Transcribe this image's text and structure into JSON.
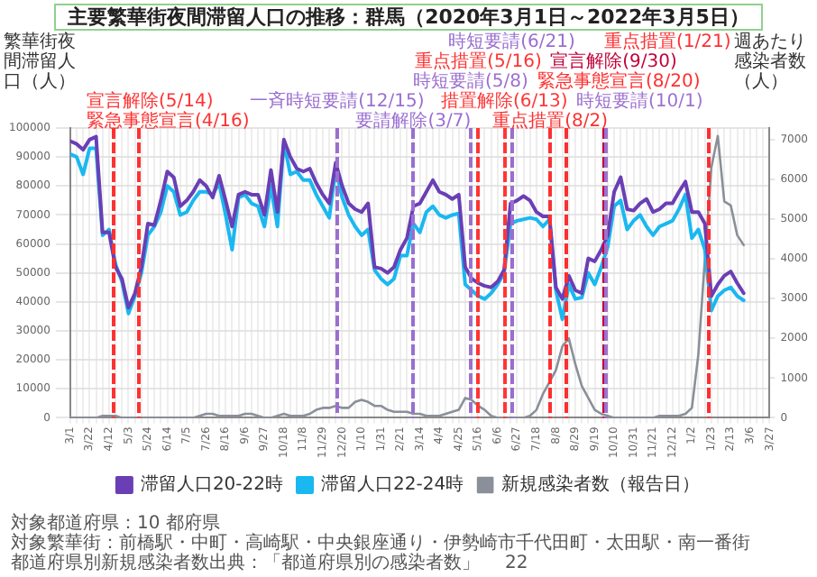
{
  "chart_data": {
    "type": "line",
    "title": "主要繁華街夜間滞留人口の推移：群馬（2020年3月1日～2022年3月5日）",
    "ylabel": "繁華街夜間滞留人口（人）",
    "y2label": "週あたり感染者数（人）",
    "x": [
      "2020-03-01",
      "2020-03-08",
      "2020-03-15",
      "2020-03-22",
      "2020-03-29",
      "2020-04-05",
      "2020-04-12",
      "2020-04-19",
      "2020-04-26",
      "2020-05-03",
      "2020-05-10",
      "2020-05-17",
      "2020-05-24",
      "2020-05-31",
      "2020-06-07",
      "2020-06-14",
      "2020-06-21",
      "2020-06-28",
      "2020-07-05",
      "2020-07-12",
      "2020-07-19",
      "2020-07-26",
      "2020-08-02",
      "2020-08-09",
      "2020-08-16",
      "2020-08-23",
      "2020-08-30",
      "2020-09-06",
      "2020-09-13",
      "2020-09-20",
      "2020-09-27",
      "2020-10-04",
      "2020-10-11",
      "2020-10-18",
      "2020-10-25",
      "2020-11-01",
      "2020-11-08",
      "2020-11-15",
      "2020-11-22",
      "2020-11-29",
      "2020-12-06",
      "2020-12-13",
      "2020-12-20",
      "2020-12-27",
      "2021-01-03",
      "2021-01-10",
      "2021-01-17",
      "2021-01-24",
      "2021-01-31",
      "2021-02-07",
      "2021-02-14",
      "2021-02-21",
      "2021-02-28",
      "2021-03-07",
      "2021-03-14",
      "2021-03-21",
      "2021-03-28",
      "2021-04-04",
      "2021-04-11",
      "2021-04-18",
      "2021-04-25",
      "2021-05-02",
      "2021-05-09",
      "2021-05-16",
      "2021-05-23",
      "2021-05-30",
      "2021-06-06",
      "2021-06-13",
      "2021-06-20",
      "2021-06-27",
      "2021-07-04",
      "2021-07-11",
      "2021-07-18",
      "2021-07-25",
      "2021-08-01",
      "2021-08-08",
      "2021-08-15",
      "2021-08-22",
      "2021-08-29",
      "2021-09-05",
      "2021-09-12",
      "2021-09-19",
      "2021-09-26",
      "2021-10-03",
      "2021-10-10",
      "2021-10-17",
      "2021-10-24",
      "2021-10-31",
      "2021-11-07",
      "2021-11-14",
      "2021-11-21",
      "2021-11-28",
      "2021-12-05",
      "2021-12-12",
      "2021-12-19",
      "2021-12-26",
      "2022-01-02",
      "2022-01-09",
      "2022-01-16",
      "2022-01-23",
      "2022-01-30",
      "2022-02-06",
      "2022-02-13",
      "2022-02-20",
      "2022-02-27"
    ],
    "series": [
      {
        "name": "滞留人口20-22時",
        "color": "#6a3fb5",
        "values": [
          95500,
          94500,
          92500,
          96000,
          97000,
          64000,
          64000,
          52000,
          48000,
          38000,
          43000,
          52000,
          67000,
          66500,
          75000,
          85000,
          83000,
          73000,
          75000,
          78000,
          82000,
          80000,
          76000,
          83500,
          75000,
          66000,
          77000,
          78000,
          77000,
          77000,
          70000,
          85500,
          71000,
          96000,
          90000,
          86000,
          85000,
          86000,
          81000,
          77000,
          74000,
          88000,
          80000,
          74000,
          72000,
          71000,
          74000,
          52000,
          51500,
          50000,
          52000,
          58000,
          62000,
          73000,
          74000,
          78000,
          82000,
          78000,
          77000,
          75500,
          77000,
          52000,
          48000,
          46500,
          45500,
          45000,
          47000,
          51000,
          74000,
          75000,
          76500,
          75000,
          71000,
          69500,
          69500,
          45000,
          41000,
          49000,
          44000,
          43000,
          55000,
          54000,
          58000,
          63000,
          78000,
          83000,
          72000,
          71500,
          74000,
          75500,
          71000,
          72000,
          74000,
          74000,
          78000,
          81500,
          71000,
          71000,
          67000,
          42000,
          46000,
          49000,
          50500,
          46500,
          43000
        ]
      },
      {
        "name": "滞留人口22-24時",
        "color": "#1ab8f0",
        "values": [
          91000,
          90000,
          84000,
          93000,
          93000,
          63000,
          65000,
          53000,
          47000,
          36000,
          42000,
          50000,
          63000,
          66000,
          71000,
          80000,
          78000,
          70000,
          71000,
          75000,
          78000,
          78000,
          77000,
          81000,
          70000,
          58000,
          76000,
          77000,
          74000,
          73000,
          66000,
          80000,
          66000,
          95000,
          84000,
          85000,
          82000,
          82000,
          77000,
          73000,
          69000,
          86000,
          76000,
          70000,
          66000,
          63000,
          65000,
          51000,
          48000,
          46000,
          48000,
          56000,
          56000,
          67000,
          64000,
          71000,
          73000,
          70000,
          69000,
          70000,
          70500,
          46000,
          44000,
          42000,
          41000,
          43000,
          46000,
          50000,
          67000,
          68000,
          68500,
          69000,
          68500,
          66000,
          68500,
          44000,
          34000,
          46000,
          41000,
          41500,
          50000,
          46000,
          52000,
          59000,
          73000,
          75000,
          65000,
          68000,
          70000,
          66000,
          63000,
          66000,
          67000,
          68000,
          72000,
          77000,
          62000,
          65000,
          58000,
          37000,
          42000,
          44000,
          45000,
          42000,
          40500
        ]
      },
      {
        "name": "新規感染者数（報告日）",
        "color": "#8a8f99",
        "axis": "y2",
        "values": [
          0,
          0,
          0,
          0,
          0,
          50,
          50,
          50,
          0,
          0,
          0,
          0,
          0,
          0,
          0,
          0,
          0,
          0,
          0,
          0,
          50,
          100,
          100,
          50,
          50,
          50,
          50,
          100,
          100,
          50,
          0,
          0,
          50,
          100,
          50,
          50,
          50,
          100,
          200,
          250,
          250,
          300,
          250,
          250,
          400,
          450,
          400,
          300,
          300,
          200,
          150,
          150,
          150,
          100,
          100,
          50,
          50,
          50,
          100,
          150,
          200,
          500,
          450,
          300,
          200,
          50,
          0,
          0,
          0,
          0,
          0,
          50,
          200,
          600,
          900,
          1200,
          1800,
          2000,
          1350,
          800,
          500,
          200,
          100,
          50,
          0,
          0,
          0,
          0,
          0,
          0,
          0,
          50,
          50,
          50,
          50,
          100,
          250,
          1600,
          4000,
          6300,
          7100,
          5450,
          5350,
          4600,
          4350
        ]
      }
    ],
    "xlim": [
      "2020-03-01",
      "2022-03-27"
    ],
    "xticks": [
      {
        "value": "2020-03-01",
        "label": "3/1"
      },
      {
        "value": "2020-03-08",
        "label": null
      },
      {
        "value": "2020-03-15",
        "label": null
      },
      {
        "value": "2020-03-22",
        "label": "3/22"
      },
      {
        "value": "2020-03-29",
        "label": null
      },
      {
        "value": "2020-04-05",
        "label": null
      },
      {
        "value": "2020-04-12",
        "label": "4/12"
      },
      {
        "value": "2020-04-19",
        "label": null
      },
      {
        "value": "2020-04-26",
        "label": null
      },
      {
        "value": "2020-05-03",
        "label": "5/3"
      },
      {
        "value": "2020-05-10",
        "label": null
      },
      {
        "value": "2020-05-17",
        "label": null
      },
      {
        "value": "2020-05-24",
        "label": "5/24"
      },
      {
        "value": "2020-05-31",
        "label": null
      },
      {
        "value": "2020-06-07",
        "label": null
      },
      {
        "value": "2020-06-14",
        "label": "6/14"
      },
      {
        "value": "2020-06-21",
        "label": null
      },
      {
        "value": "2020-06-28",
        "label": null
      },
      {
        "value": "2020-07-05",
        "label": "7/5"
      },
      {
        "value": "2020-07-12",
        "label": null
      },
      {
        "value": "2020-07-19",
        "label": null
      },
      {
        "value": "2020-07-26",
        "label": "7/26"
      },
      {
        "value": "2020-08-02",
        "label": null
      },
      {
        "value": "2020-08-09",
        "label": null
      },
      {
        "value": "2020-08-16",
        "label": "8/16"
      },
      {
        "value": "2020-08-23",
        "label": null
      },
      {
        "value": "2020-08-30",
        "label": null
      },
      {
        "value": "2020-09-06",
        "label": "9/6"
      },
      {
        "value": "2020-09-13",
        "label": null
      },
      {
        "value": "2020-09-20",
        "label": null
      },
      {
        "value": "2020-09-27",
        "label": "9/27"
      },
      {
        "value": "2020-10-04",
        "label": null
      },
      {
        "value": "2020-10-11",
        "label": null
      },
      {
        "value": "2020-10-18",
        "label": "10/18"
      },
      {
        "value": "2020-10-25",
        "label": null
      },
      {
        "value": "2020-11-01",
        "label": null
      },
      {
        "value": "2020-11-08",
        "label": "11/8"
      },
      {
        "value": "2020-11-15",
        "label": null
      },
      {
        "value": "2020-11-22",
        "label": null
      },
      {
        "value": "2020-11-29",
        "label": "11/29"
      },
      {
        "value": "2020-12-06",
        "label": null
      },
      {
        "value": "2020-12-13",
        "label": null
      },
      {
        "value": "2020-12-20",
        "label": "12/20"
      },
      {
        "value": "2020-12-27",
        "label": null
      },
      {
        "value": "2021-01-03",
        "label": null
      },
      {
        "value": "2021-01-10",
        "label": "1/10"
      },
      {
        "value": "2021-01-17",
        "label": null
      },
      {
        "value": "2021-01-24",
        "label": null
      },
      {
        "value": "2021-01-31",
        "label": "1/31"
      },
      {
        "value": "2021-02-07",
        "label": null
      },
      {
        "value": "2021-02-14",
        "label": null
      },
      {
        "value": "2021-02-21",
        "label": "2/21"
      },
      {
        "value": "2021-02-28",
        "label": null
      },
      {
        "value": "2021-03-07",
        "label": null
      },
      {
        "value": "2021-03-14",
        "label": "3/14"
      },
      {
        "value": "2021-03-21",
        "label": null
      },
      {
        "value": "2021-03-28",
        "label": null
      },
      {
        "value": "2021-04-04",
        "label": "4/4"
      },
      {
        "value": "2021-04-11",
        "label": null
      },
      {
        "value": "2021-04-18",
        "label": null
      },
      {
        "value": "2021-04-25",
        "label": "4/25"
      },
      {
        "value": "2021-05-02",
        "label": null
      },
      {
        "value": "2021-05-09",
        "label": null
      },
      {
        "value": "2021-05-16",
        "label": "5/16"
      },
      {
        "value": "2021-05-23",
        "label": null
      },
      {
        "value": "2021-05-30",
        "label": null
      },
      {
        "value": "2021-06-06",
        "label": "6/6"
      },
      {
        "value": "2021-06-13",
        "label": null
      },
      {
        "value": "2021-06-20",
        "label": null
      },
      {
        "value": "2021-06-27",
        "label": "6/27"
      },
      {
        "value": "2021-07-04",
        "label": null
      },
      {
        "value": "2021-07-11",
        "label": null
      },
      {
        "value": "2021-07-18",
        "label": "7/18"
      },
      {
        "value": "2021-07-25",
        "label": null
      },
      {
        "value": "2021-08-01",
        "label": null
      },
      {
        "value": "2021-08-08",
        "label": "8/8"
      },
      {
        "value": "2021-08-15",
        "label": null
      },
      {
        "value": "2021-08-22",
        "label": null
      },
      {
        "value": "2021-08-29",
        "label": "8/29"
      },
      {
        "value": "2021-09-05",
        "label": null
      },
      {
        "value": "2021-09-12",
        "label": null
      },
      {
        "value": "2021-09-19",
        "label": "9/19"
      },
      {
        "value": "2021-09-26",
        "label": null
      },
      {
        "value": "2021-10-03",
        "label": null
      },
      {
        "value": "2021-10-10",
        "label": "10/10"
      },
      {
        "value": "2021-10-17",
        "label": null
      },
      {
        "value": "2021-10-24",
        "label": null
      },
      {
        "value": "2021-10-31",
        "label": "10/31"
      },
      {
        "value": "2021-11-07",
        "label": null
      },
      {
        "value": "2021-11-14",
        "label": null
      },
      {
        "value": "2021-11-21",
        "label": "11/21"
      },
      {
        "value": "2021-11-28",
        "label": null
      },
      {
        "value": "2021-12-05",
        "label": null
      },
      {
        "value": "2021-12-12",
        "label": "12/12"
      },
      {
        "value": "2021-12-19",
        "label": null
      },
      {
        "value": "2021-12-26",
        "label": null
      },
      {
        "value": "2022-01-02",
        "label": "1/2"
      },
      {
        "value": "2022-01-09",
        "label": null
      },
      {
        "value": "2022-01-16",
        "label": null
      },
      {
        "value": "2022-01-23",
        "label": "1/23"
      },
      {
        "value": "2022-01-30",
        "label": null
      },
      {
        "value": "2022-02-06",
        "label": null
      },
      {
        "value": "2022-02-13",
        "label": "2/13"
      },
      {
        "value": "2022-02-20",
        "label": null
      },
      {
        "value": "2022-02-27",
        "label": null
      },
      {
        "value": "2022-03-06",
        "label": "3/6"
      },
      {
        "value": "2022-03-13",
        "label": null
      },
      {
        "value": "2022-03-20",
        "label": null
      },
      {
        "value": "2022-03-27",
        "label": "3/27"
      }
    ],
    "ylim": [
      0,
      100000
    ],
    "yticks": [
      0,
      10000,
      20000,
      30000,
      40000,
      50000,
      60000,
      70000,
      80000,
      90000,
      100000
    ],
    "y2lim": [
      0,
      7300
    ],
    "y2ticks": [
      0,
      1000,
      2000,
      3000,
      4000,
      5000,
      6000,
      7000
    ],
    "grid": true,
    "legend": "bottom",
    "line_style": "solid",
    "ref_lines": [
      {
        "axis": "x",
        "value": "2020-04-16",
        "label": "緊急事態宣言(4/16)",
        "color": "#ff3030",
        "line_style": "dashed"
      },
      {
        "axis": "x",
        "value": "2020-05-14",
        "label": "宣言解除(5/14)",
        "color": "#fe3232",
        "line_style": "dashed"
      },
      {
        "axis": "x",
        "value": "2020-12-15",
        "label": "一斉時短要請(12/15)",
        "color": "#9b6fd0",
        "line_style": "dashed"
      },
      {
        "axis": "x",
        "value": "2021-03-07",
        "label": "要請解除(3/7)",
        "color": "#9a6ed2",
        "line_style": "dashed"
      },
      {
        "axis": "x",
        "value": "2021-05-08",
        "label": "時短要請(5/8)",
        "color": "#9c70ce",
        "line_style": "dashed"
      },
      {
        "axis": "x",
        "value": "2021-05-16",
        "label": "重点措置(5/16)",
        "color": "#fd3434",
        "line_style": "dashed"
      },
      {
        "axis": "x",
        "value": "2021-06-13",
        "label": "措置解除(6/13)",
        "color": "#ff3636",
        "line_style": "dashed"
      },
      {
        "axis": "x",
        "value": "2021-06-21",
        "label": "時短要請(6/21)",
        "color": "#996dd1",
        "line_style": "dashed"
      },
      {
        "axis": "x",
        "value": "2021-08-02",
        "label": "重点措置(8/2)",
        "color": "#fc3030",
        "line_style": "dashed"
      },
      {
        "axis": "x",
        "value": "2021-08-20",
        "label": "緊急事態宣言(8/20)",
        "color": "#ff2e2e",
        "line_style": "dashed"
      },
      {
        "axis": "x",
        "value": "2021-09-30",
        "label": "宣言解除(9/30)",
        "color": "#c0003a",
        "line_style": "dashed"
      },
      {
        "axis": "x",
        "value": "2021-10-01",
        "label": "時短要請(10/1)",
        "color": "#9d71d0",
        "line_style": "dashed"
      },
      {
        "axis": "x",
        "value": "2022-01-21",
        "label": "重点措置(1/21)",
        "color": "#fd2f33",
        "line_style": "dashed"
      }
    ],
    "annotations": [
      "対象都道府県：10 都府県",
      "対象繁華街：前橋駅・中町・高崎駅・中央銀座通り・伊勢崎市千代田町・太田駅・南一番街",
      "都道府県別新規感染者数出典：「都道府県別の感染者数」",
      "22"
    ]
  }
}
